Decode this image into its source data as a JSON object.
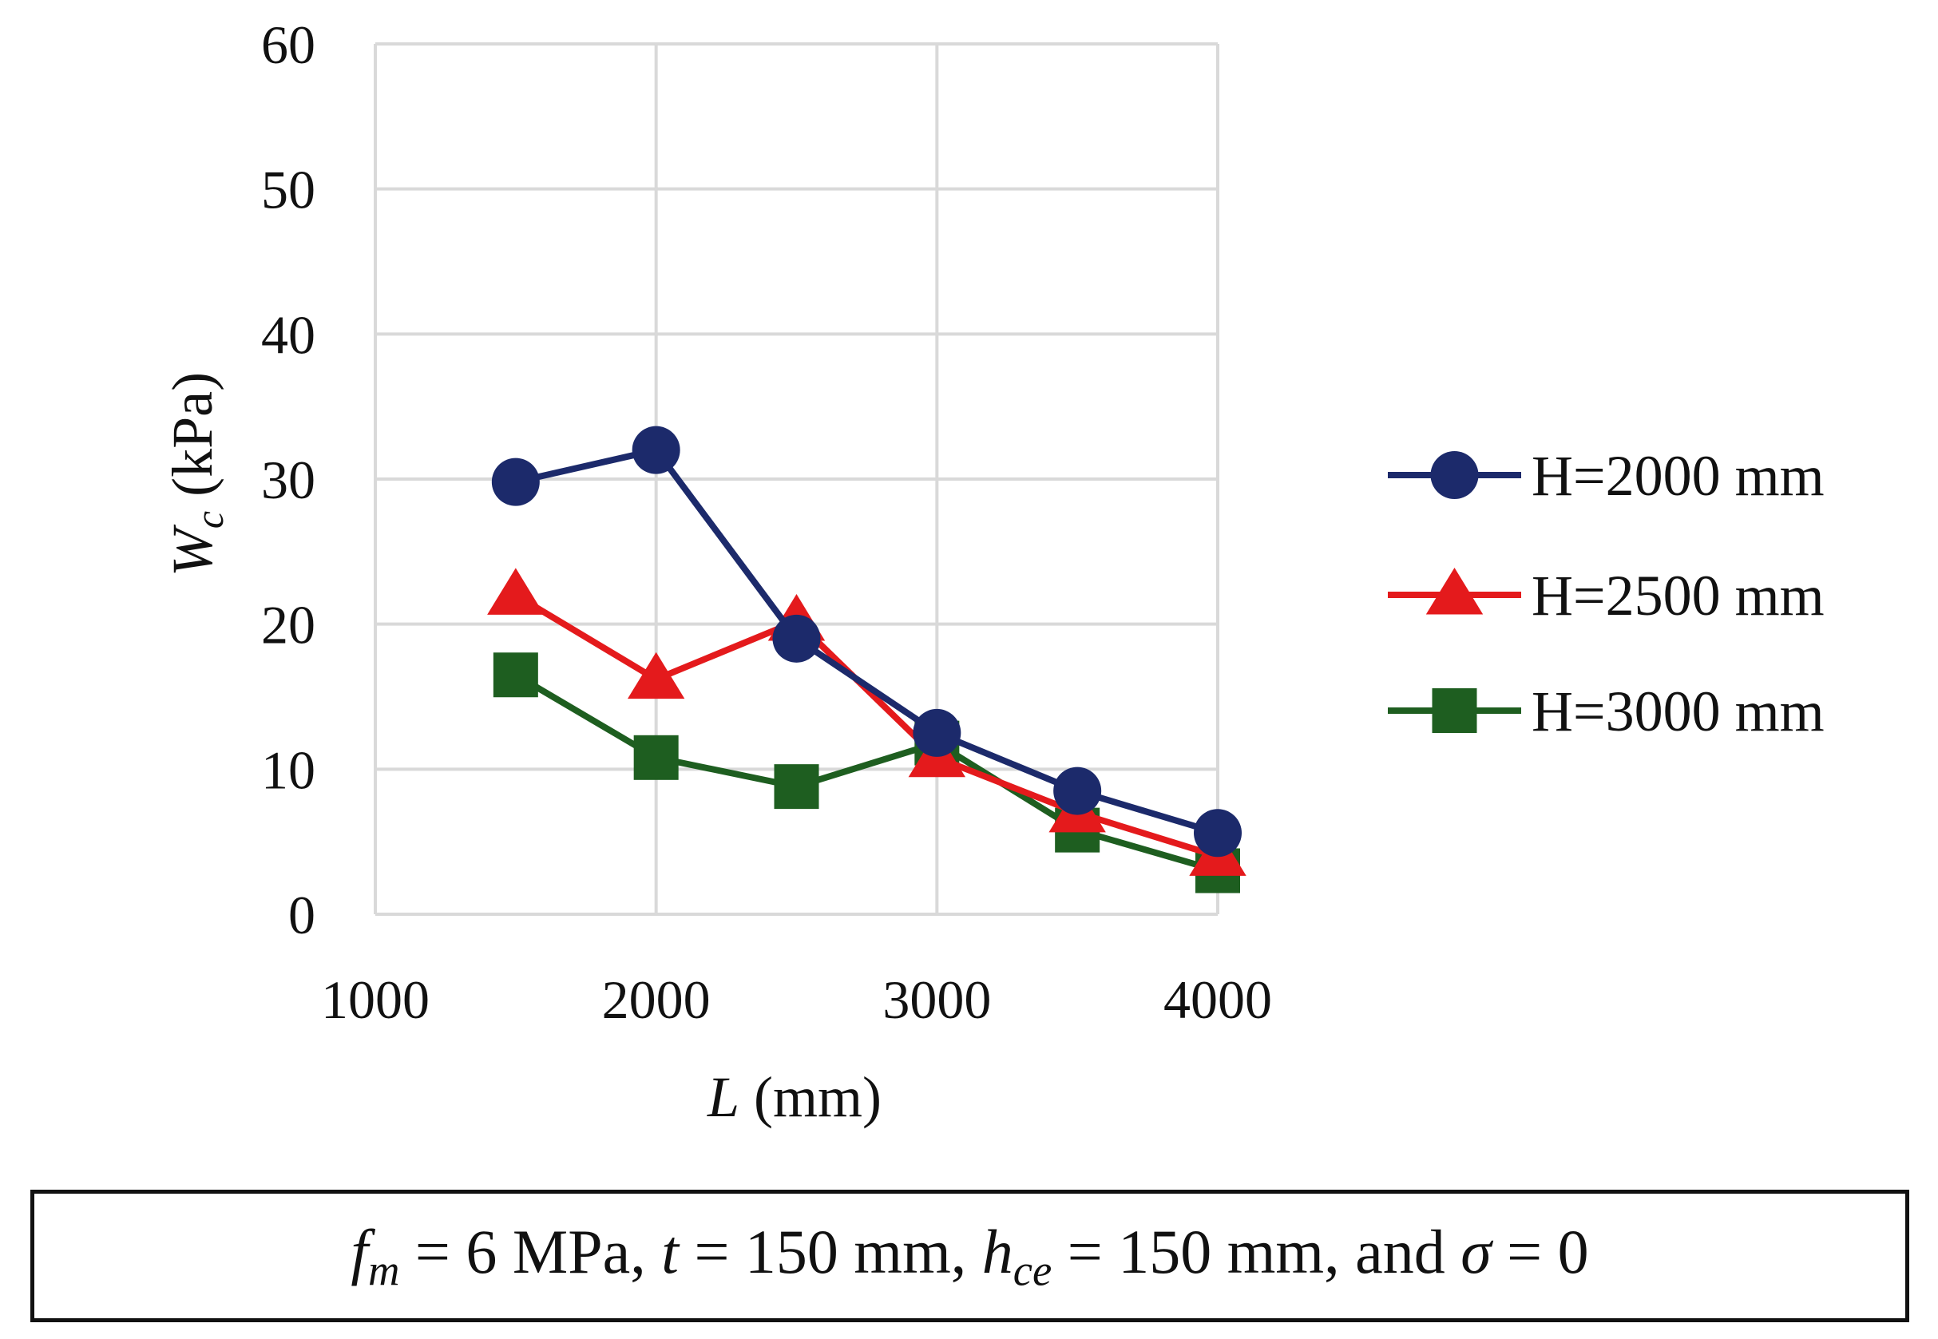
{
  "chart_data": {
    "type": "line",
    "title": "",
    "xlabel": {
      "var": "L",
      "unit": " (mm)"
    },
    "ylabel": {
      "var": "W",
      "sub": "c",
      "unit": " (kPa)"
    },
    "xlim": [
      1000,
      4000
    ],
    "ylim": [
      0,
      60
    ],
    "xticks": [
      1000,
      2000,
      3000,
      4000
    ],
    "yticks": [
      0,
      10,
      20,
      30,
      40,
      50,
      60
    ],
    "xgrid_values": [
      1000,
      2000,
      3000,
      4000
    ],
    "grid": true,
    "legend_position": "right",
    "x": [
      1500,
      2000,
      2500,
      3000,
      3500,
      4000
    ],
    "series": [
      {
        "name": "H=2000 mm",
        "color": "#1c2a6b",
        "marker": "circle",
        "values": [
          29.8,
          32.0,
          19.0,
          12.5,
          8.5,
          5.6
        ]
      },
      {
        "name": "H=2500 mm",
        "color": "#e41a1c",
        "marker": "triangle",
        "values": [
          22.0,
          16.2,
          20.2,
          10.8,
          7.0,
          4.0
        ]
      },
      {
        "name": "H=3000 mm",
        "color": "#1e5e20",
        "marker": "square",
        "values": [
          16.5,
          10.8,
          8.8,
          11.8,
          5.8,
          3.0
        ]
      }
    ]
  },
  "caption": {
    "fm_var": "f",
    "fm_sub": "m",
    "fm_rest": " = 6 MPa, ",
    "t_var": "t",
    "t_rest": " = 150 mm, ",
    "hce_var": "h",
    "hce_sub": "ce",
    "hce_rest": " = 150 mm, and ",
    "sigma_var": "σ",
    "sigma_rest": " = 0"
  }
}
